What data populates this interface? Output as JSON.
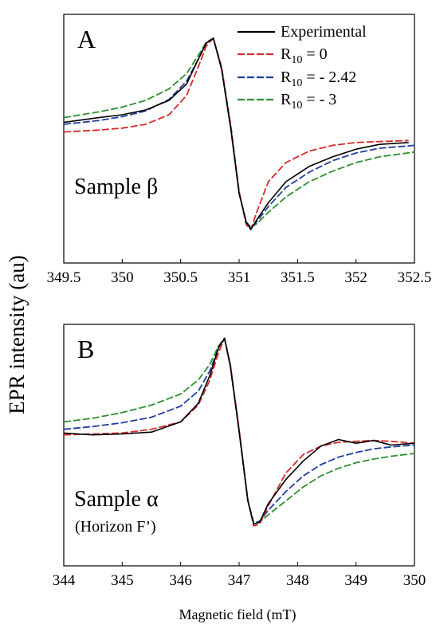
{
  "figure": {
    "ylabel": "EPR intensity (au)",
    "xlabel": "Magnetic field (mT)"
  },
  "colors": {
    "experimental": "#000000",
    "r0": "#d42a2a",
    "r242": "#1f3f9f",
    "r3": "#2f8f2f"
  },
  "legend": [
    {
      "key": "experimental",
      "prefix": "Experimental",
      "sub": "",
      "value": "",
      "style": "solid"
    },
    {
      "key": "r0",
      "prefix": "R",
      "sub": "10",
      "value": " = 0",
      "style": "dashed"
    },
    {
      "key": "r242",
      "prefix": "R",
      "sub": "10",
      "value": " = - 2.42",
      "style": "dashed"
    },
    {
      "key": "r3",
      "prefix": "R",
      "sub": "10",
      "value": " = - 3",
      "style": "dashed"
    }
  ],
  "chart_data": [
    {
      "type": "line",
      "panel_label": "A",
      "annotation": "Sample β",
      "annotation2": "",
      "xlim": [
        349.5,
        352.5
      ],
      "xticks": [
        "349.5",
        "350",
        "350.5",
        "351",
        "351.5",
        "352",
        "352.5"
      ],
      "ylim": [
        -1.35,
        1.25
      ],
      "y_ticks_shown": false,
      "legend_position": "top-right",
      "series": [
        {
          "key": "experimental",
          "x": [
            349.5,
            349.8,
            350.0,
            350.2,
            350.4,
            350.55,
            350.65,
            350.72,
            350.78,
            350.85,
            350.93,
            351.0,
            351.06,
            351.1,
            351.15,
            351.25,
            351.4,
            351.6,
            351.8,
            352.0,
            352.2,
            352.45
          ],
          "y": [
            0.12,
            0.17,
            0.2,
            0.25,
            0.35,
            0.52,
            0.78,
            0.95,
            1.0,
            0.68,
            0.05,
            -0.62,
            -0.92,
            -1.0,
            -0.9,
            -0.72,
            -0.5,
            -0.34,
            -0.24,
            -0.16,
            -0.11,
            -0.09
          ]
        },
        {
          "key": "r0",
          "x": [
            349.5,
            349.8,
            350.0,
            350.2,
            350.4,
            350.55,
            350.65,
            350.72,
            350.78,
            350.85,
            350.93,
            351.0,
            351.06,
            351.1,
            351.15,
            351.25,
            351.4,
            351.6,
            351.8,
            352.0,
            352.2,
            352.45
          ],
          "y": [
            0.02,
            0.04,
            0.06,
            0.1,
            0.2,
            0.4,
            0.7,
            0.92,
            1.0,
            0.7,
            0.08,
            -0.6,
            -0.95,
            -1.0,
            -0.82,
            -0.5,
            -0.3,
            -0.18,
            -0.12,
            -0.09,
            -0.08,
            -0.07
          ]
        },
        {
          "key": "r242",
          "x": [
            349.5,
            349.8,
            350.0,
            350.2,
            350.4,
            350.55,
            350.65,
            350.72,
            350.78,
            350.85,
            350.93,
            351.0,
            351.06,
            351.1,
            351.15,
            351.25,
            351.4,
            351.6,
            351.8,
            352.0,
            352.2,
            352.5
          ],
          "y": [
            0.1,
            0.14,
            0.18,
            0.24,
            0.36,
            0.55,
            0.78,
            0.95,
            1.0,
            0.68,
            0.05,
            -0.62,
            -0.92,
            -0.98,
            -0.92,
            -0.76,
            -0.56,
            -0.4,
            -0.28,
            -0.2,
            -0.15,
            -0.12
          ]
        },
        {
          "key": "r3",
          "x": [
            349.5,
            349.8,
            350.0,
            350.2,
            350.4,
            350.55,
            350.65,
            350.72,
            350.78,
            350.85,
            350.93,
            351.0,
            351.06,
            351.1,
            351.15,
            351.25,
            351.4,
            351.6,
            351.8,
            352.0,
            352.2,
            352.5
          ],
          "y": [
            0.17,
            0.23,
            0.28,
            0.35,
            0.47,
            0.63,
            0.82,
            0.96,
            1.0,
            0.68,
            0.05,
            -0.62,
            -0.92,
            -0.98,
            -0.94,
            -0.82,
            -0.66,
            -0.5,
            -0.39,
            -0.3,
            -0.24,
            -0.19
          ]
        }
      ]
    },
    {
      "type": "line",
      "panel_label": "B",
      "annotation": "Sample α",
      "annotation2": "(Horizon F’)",
      "xlim": [
        344,
        350
      ],
      "xticks": [
        "344",
        "345",
        "346",
        "347",
        "348",
        "349",
        "350"
      ],
      "ylim": [
        -1.45,
        1.15
      ],
      "y_ticks_shown": false,
      "legend_position": "none",
      "series": [
        {
          "key": "experimental",
          "x": [
            344,
            344.5,
            345,
            345.5,
            346,
            346.3,
            346.5,
            346.65,
            346.75,
            346.85,
            347.0,
            347.15,
            347.25,
            347.35,
            347.5,
            347.8,
            348.1,
            348.4,
            348.7,
            349.0,
            349.3,
            349.6,
            350
          ],
          "y": [
            -0.02,
            -0.04,
            -0.03,
            -0.01,
            0.1,
            0.3,
            0.6,
            0.9,
            1.0,
            0.7,
            0.0,
            -0.75,
            -1.0,
            -0.98,
            -0.78,
            -0.52,
            -0.32,
            -0.16,
            -0.09,
            -0.13,
            -0.1,
            -0.15,
            -0.13
          ]
        },
        {
          "key": "r0",
          "x": [
            344,
            344.5,
            345,
            345.5,
            346,
            346.3,
            346.5,
            346.65,
            346.75,
            346.85,
            347.0,
            347.15,
            347.25,
            347.35,
            347.5,
            347.8,
            348.1,
            348.4,
            348.7,
            349.0,
            349.3,
            349.6,
            350
          ],
          "y": [
            -0.04,
            -0.03,
            -0.02,
            0.02,
            0.1,
            0.28,
            0.55,
            0.85,
            1.0,
            0.72,
            0.02,
            -0.75,
            -1.02,
            -1.0,
            -0.8,
            -0.45,
            -0.25,
            -0.16,
            -0.12,
            -0.11,
            -0.1,
            -0.11,
            -0.13
          ]
        },
        {
          "key": "r242",
          "x": [
            344,
            344.5,
            345,
            345.5,
            346,
            346.3,
            346.5,
            346.65,
            346.75,
            346.85,
            347.0,
            347.15,
            347.25,
            347.35,
            347.5,
            347.8,
            348.1,
            348.4,
            348.7,
            349.0,
            349.3,
            349.6,
            350
          ],
          "y": [
            0.02,
            0.05,
            0.09,
            0.15,
            0.27,
            0.43,
            0.65,
            0.9,
            1.0,
            0.7,
            0.0,
            -0.75,
            -0.99,
            -0.97,
            -0.85,
            -0.65,
            -0.48,
            -0.36,
            -0.28,
            -0.23,
            -0.19,
            -0.17,
            -0.15
          ]
        },
        {
          "key": "r3",
          "x": [
            344,
            344.5,
            345,
            345.5,
            346,
            346.3,
            346.5,
            346.65,
            346.75,
            346.85,
            347.0,
            347.15,
            347.25,
            347.35,
            347.5,
            347.8,
            348.1,
            348.4,
            348.7,
            349.0,
            349.3,
            349.6,
            350
          ],
          "y": [
            0.1,
            0.14,
            0.2,
            0.28,
            0.4,
            0.55,
            0.72,
            0.92,
            1.0,
            0.7,
            0.0,
            -0.75,
            -0.99,
            -0.98,
            -0.9,
            -0.75,
            -0.6,
            -0.48,
            -0.4,
            -0.34,
            -0.3,
            -0.27,
            -0.24
          ]
        }
      ]
    }
  ]
}
